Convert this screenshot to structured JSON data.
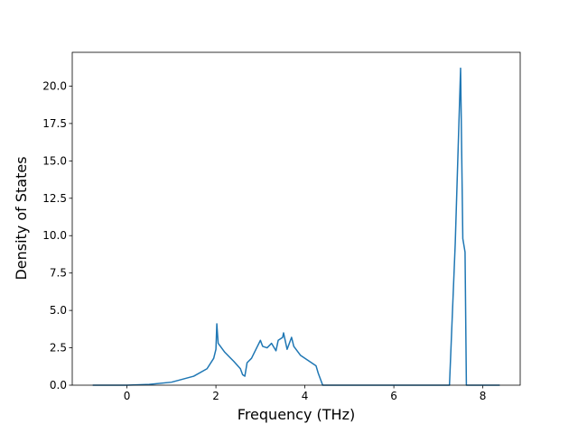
{
  "chart_data": {
    "type": "line",
    "x_label": "Frequency (THz)",
    "y_label": "Density of States",
    "x": [
      -0.77,
      0,
      0.5,
      1.0,
      1.5,
      1.8,
      1.95,
      2.0,
      2.02,
      2.05,
      2.2,
      2.4,
      2.55,
      2.6,
      2.65,
      2.7,
      2.8,
      2.9,
      3.0,
      3.05,
      3.15,
      3.25,
      3.35,
      3.4,
      3.5,
      3.52,
      3.6,
      3.7,
      3.75,
      3.9,
      4.1,
      4.25,
      4.3,
      4.4,
      7.25,
      7.38,
      7.5,
      7.55,
      7.6,
      7.63,
      8.38
    ],
    "series": [
      {
        "color": "#1f77b4",
        "values": [
          0,
          0,
          0.05,
          0.2,
          0.6,
          1.1,
          1.8,
          2.4,
          4.1,
          2.8,
          2.2,
          1.6,
          1.1,
          0.7,
          0.6,
          1.5,
          1.8,
          2.4,
          3.0,
          2.6,
          2.5,
          2.8,
          2.3,
          3.0,
          3.2,
          3.5,
          2.4,
          3.2,
          2.6,
          2.0,
          1.6,
          1.3,
          0.8,
          0.0,
          0.0,
          9.5,
          21.2,
          9.8,
          8.9,
          0.0,
          0
        ]
      }
    ],
    "xlim": [
      -1.23,
      8.84
    ],
    "xticks": [
      0,
      2,
      4,
      6,
      8
    ],
    "ylim": [
      0,
      22.26
    ],
    "yticks": [
      {
        "value": 0,
        "label": "0.0"
      },
      {
        "value": 2.5,
        "label": "2.5"
      },
      {
        "value": 5,
        "label": "5.0"
      },
      {
        "value": 7.5,
        "label": "7.5"
      },
      {
        "value": 10,
        "label": "10.0"
      },
      {
        "value": 12.5,
        "label": "12.5"
      },
      {
        "value": 15,
        "label": "15.0"
      },
      {
        "value": 17.5,
        "label": "17.5"
      },
      {
        "value": 20,
        "label": "20.0"
      }
    ]
  }
}
